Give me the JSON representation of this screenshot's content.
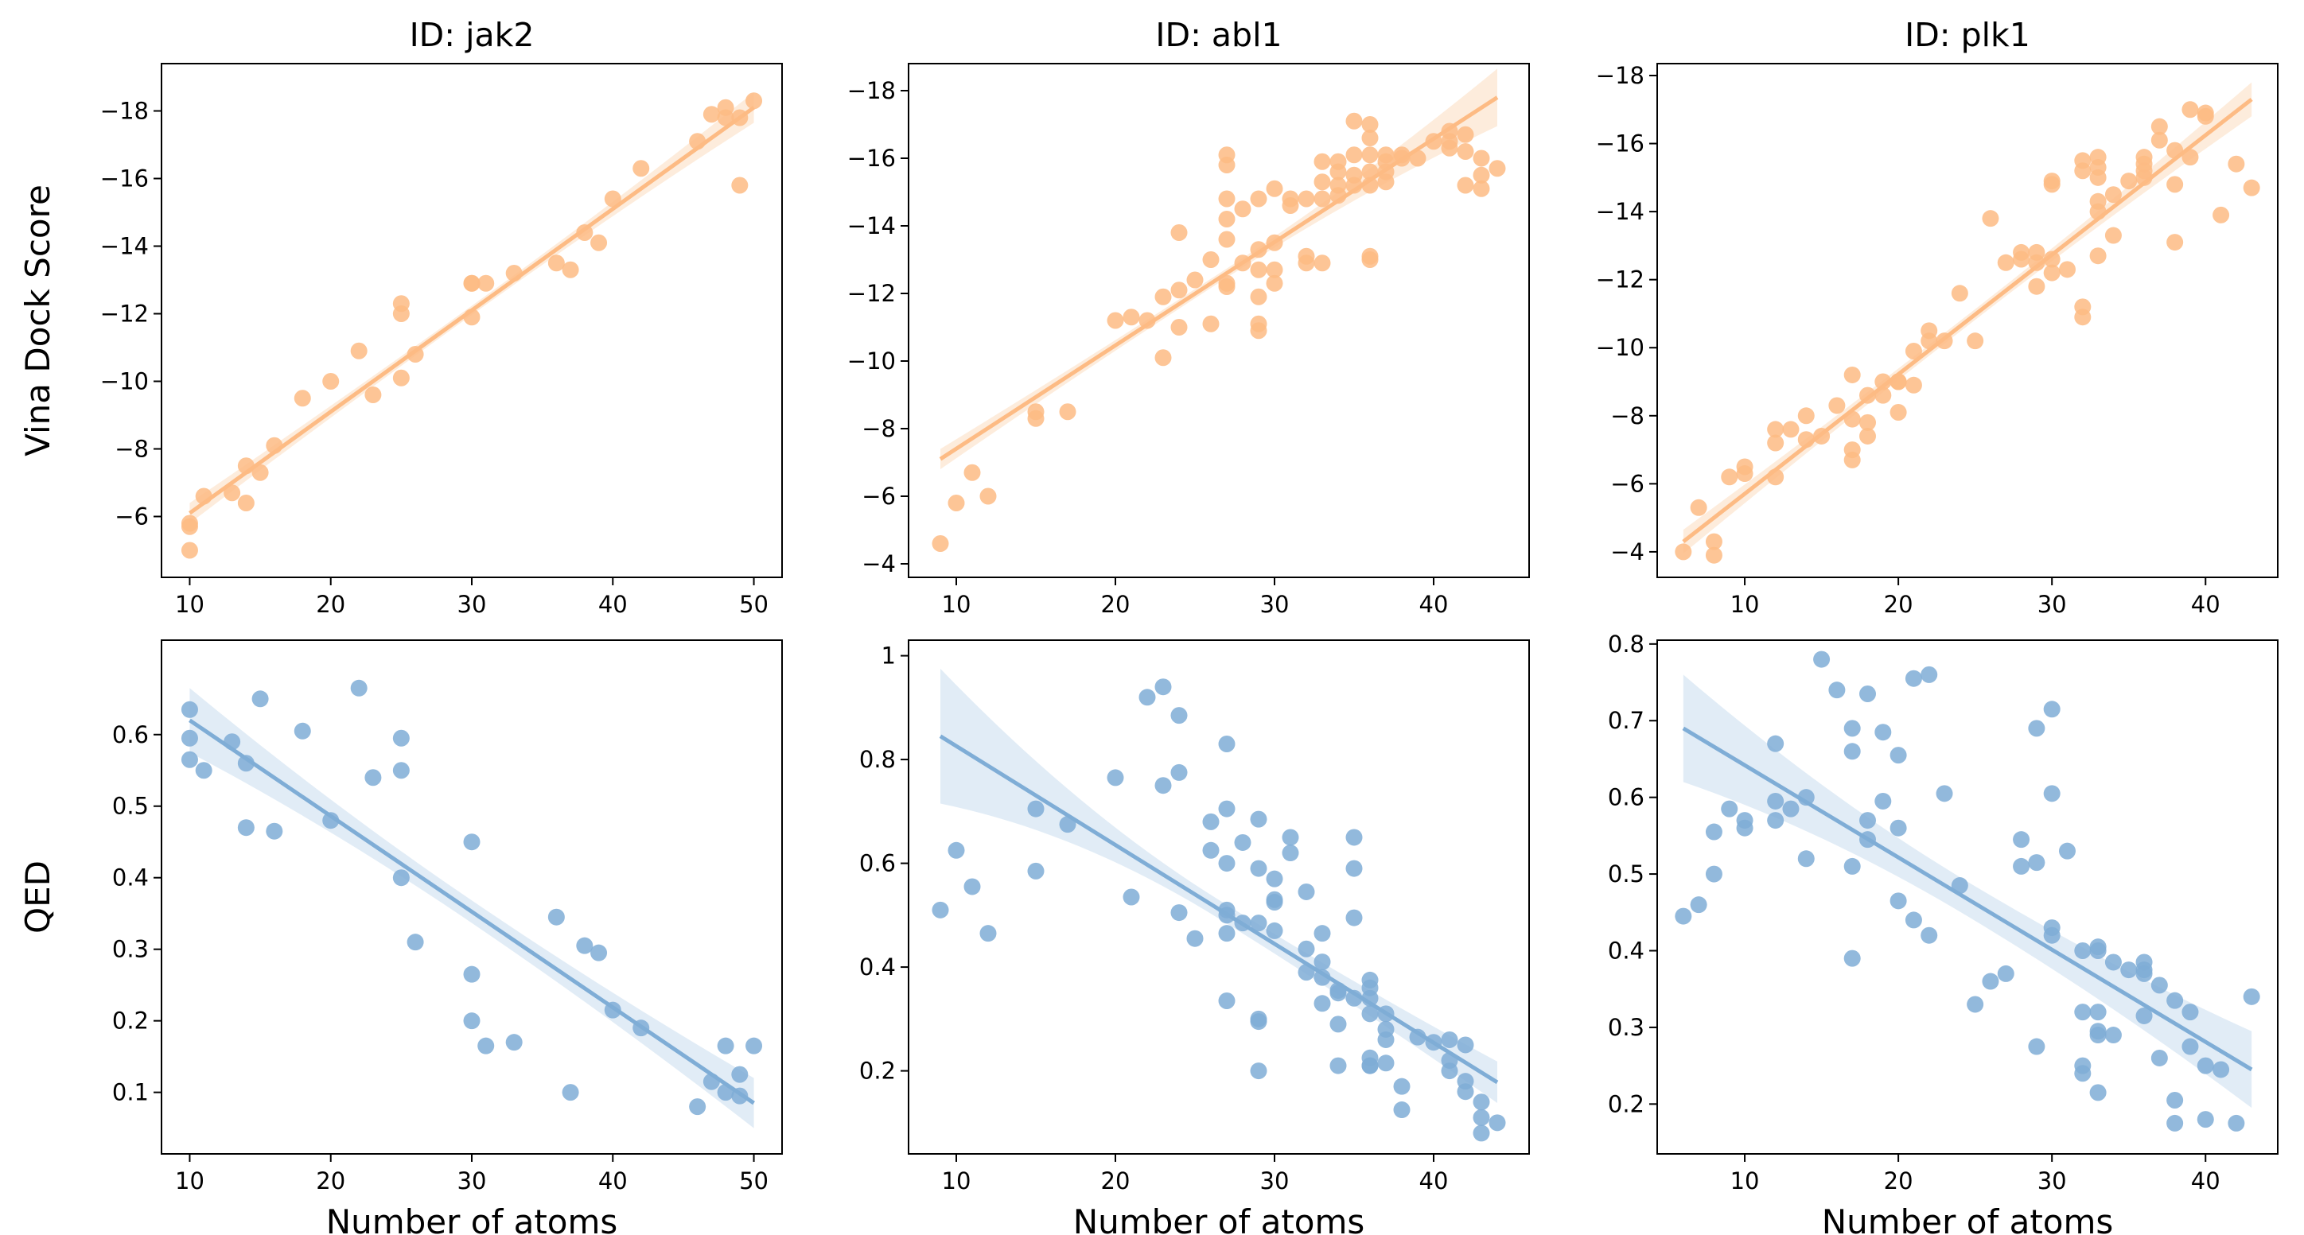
{
  "colors": {
    "orange": "#fdbb84",
    "blue": "#7fadd6",
    "band_orange": "#fde9d6",
    "band_blue": "#dce9f5"
  },
  "chart_data": [
    {
      "type": "scatter",
      "title": "ID: jak2",
      "ylabel": "Vina Dock Score",
      "xlabel": "",
      "y_inverted": true,
      "xlim": [
        8,
        52
      ],
      "ylim": [
        -4.2,
        -19.4
      ],
      "xticks": [
        10,
        20,
        30,
        40,
        50
      ],
      "yticks": [
        -6,
        -8,
        -10,
        -12,
        -14,
        -16,
        -18
      ],
      "color": "orange",
      "fit": [
        [
          10,
          -6.1
        ],
        [
          50,
          -18.1
        ]
      ],
      "ci": [
        0.3,
        0.45
      ],
      "x": [
        10,
        10,
        10,
        11,
        13,
        14,
        14,
        15,
        16,
        18,
        20,
        22,
        23,
        25,
        25,
        25,
        26,
        30,
        30,
        30,
        31,
        33,
        36,
        37,
        38,
        39,
        40,
        42,
        46,
        47,
        48,
        48,
        49,
        49,
        50
      ],
      "y": [
        -5.7,
        -5.8,
        -5.0,
        -6.6,
        -6.7,
        -6.4,
        -7.5,
        -7.3,
        -8.1,
        -9.5,
        -10.0,
        -10.9,
        -9.6,
        -10.1,
        -12.0,
        -12.3,
        -10.8,
        -11.9,
        -12.9,
        -12.9,
        -12.9,
        -13.2,
        -13.5,
        -13.3,
        -14.4,
        -14.1,
        -15.4,
        -16.3,
        -17.1,
        -17.9,
        -18.1,
        -17.8,
        -17.8,
        -15.8,
        -18.3
      ]
    },
    {
      "type": "scatter",
      "title": "ID: abl1",
      "ylabel": "",
      "xlabel": "",
      "y_inverted": true,
      "xlim": [
        7,
        46
      ],
      "ylim": [
        -3.6,
        -18.8
      ],
      "xticks": [
        10,
        20,
        30,
        40
      ],
      "yticks": [
        -4,
        -6,
        -8,
        -10,
        -12,
        -14,
        -16,
        -18
      ],
      "color": "orange",
      "fit": [
        [
          9,
          -7.1
        ],
        [
          44,
          -17.8
        ]
      ],
      "ci": [
        0.3,
        0.85
      ],
      "x": [
        9,
        10,
        11,
        12,
        15,
        15,
        17,
        20,
        21,
        22,
        23,
        23,
        24,
        24,
        24,
        25,
        26,
        26,
        27,
        27,
        27,
        27,
        27,
        27,
        27,
        28,
        28,
        29,
        29,
        29,
        29,
        29,
        29,
        30,
        30,
        30,
        30,
        31,
        31,
        32,
        32,
        32,
        33,
        33,
        33,
        33,
        34,
        34,
        34,
        34,
        35,
        35,
        35,
        35,
        36,
        36,
        36,
        36,
        36,
        36,
        36,
        37,
        37,
        37,
        37,
        38,
        38,
        39,
        40,
        41,
        41,
        41,
        42,
        42,
        42,
        43,
        43,
        43,
        44
      ],
      "y": [
        -4.6,
        -5.8,
        -6.7,
        -6.0,
        -8.5,
        -8.3,
        -8.5,
        -11.2,
        -11.3,
        -11.2,
        -10.1,
        -11.9,
        -11.0,
        -12.1,
        -13.8,
        -12.4,
        -11.1,
        -13.0,
        -12.2,
        -12.3,
        -13.6,
        -14.2,
        -14.8,
        -15.8,
        -16.1,
        -12.9,
        -14.5,
        -10.9,
        -11.1,
        -11.9,
        -12.7,
        -13.3,
        -14.8,
        -12.3,
        -12.7,
        -13.5,
        -15.1,
        -14.6,
        -14.8,
        -12.9,
        -13.1,
        -14.8,
        -12.9,
        -14.8,
        -15.3,
        -15.9,
        -14.9,
        -15.2,
        -15.6,
        -15.9,
        -15.2,
        -15.5,
        -16.1,
        -17.1,
        -13.0,
        -13.1,
        -15.2,
        -15.6,
        -16.1,
        -16.6,
        -17.0,
        -15.3,
        -15.6,
        -16.1,
        -15.9,
        -16.1,
        -16.0,
        -16.0,
        -16.5,
        -16.3,
        -16.5,
        -16.8,
        -15.2,
        -16.2,
        -16.7,
        -15.1,
        -15.5,
        -16.0,
        -15.7
      ]
    },
    {
      "type": "scatter",
      "title": "ID: plk1",
      "ylabel": "",
      "xlabel": "",
      "y_inverted": true,
      "xlim": [
        4.3,
        44.7
      ],
      "ylim": [
        -3.25,
        -18.35
      ],
      "xticks": [
        10,
        20,
        30,
        40
      ],
      "yticks": [
        -4,
        -6,
        -8,
        -10,
        -12,
        -14,
        -16,
        -18
      ],
      "color": "orange",
      "fit": [
        [
          6,
          -4.3
        ],
        [
          43,
          -17.3
        ]
      ],
      "ci": [
        0.35,
        0.5
      ],
      "x": [
        6,
        7,
        8,
        8,
        9,
        10,
        10,
        12,
        12,
        12,
        13,
        14,
        14,
        15,
        16,
        17,
        17,
        17,
        17,
        18,
        18,
        18,
        19,
        19,
        20,
        20,
        20,
        21,
        21,
        22,
        22,
        23,
        24,
        25,
        26,
        27,
        28,
        28,
        29,
        29,
        29,
        30,
        30,
        30,
        30,
        31,
        32,
        32,
        32,
        32,
        33,
        33,
        33,
        33,
        33,
        33,
        34,
        34,
        35,
        36,
        36,
        36,
        36,
        37,
        37,
        38,
        38,
        38,
        39,
        39,
        40,
        40,
        41,
        42,
        43
      ],
      "y": [
        -4.0,
        -5.3,
        -4.3,
        -3.9,
        -6.2,
        -6.5,
        -6.3,
        -7.2,
        -6.2,
        -7.6,
        -7.6,
        -7.3,
        -8.0,
        -7.4,
        -8.3,
        -6.7,
        -7.0,
        -7.9,
        -9.2,
        -8.6,
        -7.4,
        -7.8,
        -8.6,
        -9.0,
        -9.0,
        -8.1,
        -9.0,
        -8.9,
        -9.9,
        -10.2,
        -10.5,
        -10.2,
        -11.6,
        -10.2,
        -13.8,
        -12.5,
        -12.6,
        -12.8,
        -11.8,
        -12.8,
        -12.5,
        -12.2,
        -12.6,
        -14.8,
        -14.9,
        -12.3,
        -10.9,
        -11.2,
        -15.2,
        -15.5,
        -12.7,
        -14.0,
        -14.3,
        -15.0,
        -15.3,
        -15.6,
        -13.3,
        -14.5,
        -14.9,
        -15.0,
        -15.2,
        -15.4,
        -15.6,
        -16.1,
        -16.5,
        -13.1,
        -14.8,
        -15.8,
        -15.6,
        -17.0,
        -16.8,
        -16.9,
        -13.9,
        -15.4,
        -14.7
      ]
    },
    {
      "type": "scatter",
      "title": "",
      "ylabel": "QED",
      "xlabel": "Number of atoms",
      "y_inverted": false,
      "xlim": [
        8,
        52
      ],
      "ylim": [
        0.014,
        0.732
      ],
      "xticks": [
        10,
        20,
        30,
        40,
        50
      ],
      "yticks": [
        0.1,
        0.2,
        0.3,
        0.4,
        0.5,
        0.6
      ],
      "color": "blue",
      "fit": [
        [
          10,
          0.62
        ],
        [
          50,
          0.085
        ]
      ],
      "ci": [
        0.045,
        0.035
      ],
      "x": [
        10,
        10,
        10,
        11,
        13,
        14,
        14,
        15,
        16,
        18,
        20,
        22,
        23,
        25,
        25,
        25,
        26,
        30,
        30,
        30,
        31,
        33,
        36,
        37,
        38,
        39,
        40,
        42,
        46,
        47,
        48,
        48,
        49,
        49,
        50
      ],
      "y": [
        0.635,
        0.595,
        0.565,
        0.55,
        0.59,
        0.56,
        0.47,
        0.65,
        0.465,
        0.605,
        0.48,
        0.665,
        0.54,
        0.595,
        0.55,
        0.4,
        0.31,
        0.45,
        0.265,
        0.2,
        0.165,
        0.17,
        0.345,
        0.1,
        0.305,
        0.295,
        0.215,
        0.19,
        0.08,
        0.115,
        0.165,
        0.1,
        0.125,
        0.095,
        0.165
      ]
    },
    {
      "type": "scatter",
      "title": "",
      "ylabel": "",
      "xlabel": "Number of atoms",
      "y_inverted": false,
      "xlim": [
        7,
        46
      ],
      "ylim": [
        0.04,
        1.03
      ],
      "xticks": [
        10,
        20,
        30,
        40
      ],
      "yticks": [
        0.2,
        0.4,
        0.6,
        0.8,
        1.0
      ],
      "color": "blue",
      "fit": [
        [
          9,
          0.845
        ],
        [
          44,
          0.178
        ]
      ],
      "ci": [
        0.13,
        0.04
      ],
      "x": [
        9,
        10,
        11,
        12,
        15,
        15,
        17,
        20,
        21,
        22,
        23,
        23,
        24,
        24,
        24,
        25,
        26,
        26,
        27,
        27,
        27,
        27,
        27,
        27,
        27,
        28,
        28,
        29,
        29,
        29,
        29,
        29,
        29,
        30,
        30,
        30,
        30,
        31,
        31,
        32,
        32,
        32,
        33,
        33,
        33,
        33,
        34,
        34,
        34,
        34,
        35,
        35,
        35,
        35,
        36,
        36,
        36,
        36,
        36,
        36,
        36,
        37,
        37,
        37,
        37,
        38,
        38,
        39,
        40,
        41,
        41,
        41,
        42,
        42,
        42,
        43,
        43,
        43,
        44
      ],
      "y": [
        0.51,
        0.625,
        0.555,
        0.465,
        0.705,
        0.585,
        0.675,
        0.765,
        0.535,
        0.92,
        0.94,
        0.75,
        0.885,
        0.775,
        0.505,
        0.455,
        0.68,
        0.625,
        0.83,
        0.705,
        0.6,
        0.51,
        0.465,
        0.5,
        0.335,
        0.485,
        0.64,
        0.685,
        0.59,
        0.485,
        0.3,
        0.295,
        0.2,
        0.57,
        0.53,
        0.525,
        0.47,
        0.65,
        0.62,
        0.545,
        0.435,
        0.39,
        0.41,
        0.465,
        0.38,
        0.33,
        0.355,
        0.35,
        0.29,
        0.21,
        0.65,
        0.59,
        0.495,
        0.34,
        0.375,
        0.36,
        0.34,
        0.31,
        0.225,
        0.21,
        0.21,
        0.31,
        0.28,
        0.26,
        0.215,
        0.17,
        0.125,
        0.265,
        0.255,
        0.26,
        0.22,
        0.2,
        0.18,
        0.25,
        0.16,
        0.11,
        0.14,
        0.08,
        0.1
      ]
    },
    {
      "type": "scatter",
      "title": "",
      "ylabel": "",
      "xlabel": "Number of atoms",
      "y_inverted": false,
      "xlim": [
        4.3,
        44.7
      ],
      "ylim": [
        0.135,
        0.805
      ],
      "xticks": [
        10,
        20,
        30,
        40
      ],
      "yticks": [
        0.2,
        0.3,
        0.4,
        0.5,
        0.6,
        0.7,
        0.8
      ],
      "color": "blue",
      "fit": [
        [
          6,
          0.69
        ],
        [
          43,
          0.245
        ]
      ],
      "ci": [
        0.07,
        0.05
      ],
      "x": [
        6,
        7,
        8,
        8,
        9,
        10,
        10,
        12,
        12,
        12,
        13,
        14,
        14,
        15,
        16,
        17,
        17,
        17,
        17,
        18,
        18,
        18,
        19,
        19,
        20,
        20,
        20,
        21,
        21,
        22,
        22,
        23,
        24,
        25,
        26,
        27,
        28,
        28,
        29,
        29,
        29,
        30,
        30,
        30,
        30,
        31,
        32,
        32,
        32,
        32,
        33,
        33,
        33,
        33,
        33,
        33,
        34,
        34,
        35,
        36,
        36,
        36,
        36,
        37,
        37,
        38,
        38,
        38,
        39,
        39,
        40,
        40,
        41,
        42,
        43
      ],
      "y": [
        0.445,
        0.46,
        0.5,
        0.555,
        0.585,
        0.57,
        0.56,
        0.67,
        0.595,
        0.57,
        0.585,
        0.6,
        0.52,
        0.78,
        0.74,
        0.69,
        0.66,
        0.51,
        0.39,
        0.735,
        0.57,
        0.545,
        0.685,
        0.595,
        0.655,
        0.56,
        0.465,
        0.755,
        0.44,
        0.76,
        0.42,
        0.605,
        0.485,
        0.33,
        0.36,
        0.37,
        0.545,
        0.51,
        0.69,
        0.515,
        0.275,
        0.715,
        0.605,
        0.43,
        0.42,
        0.53,
        0.4,
        0.32,
        0.25,
        0.24,
        0.405,
        0.4,
        0.29,
        0.32,
        0.295,
        0.215,
        0.385,
        0.29,
        0.375,
        0.385,
        0.375,
        0.37,
        0.315,
        0.355,
        0.26,
        0.335,
        0.205,
        0.175,
        0.32,
        0.275,
        0.25,
        0.18,
        0.245,
        0.175,
        0.34
      ]
    }
  ]
}
